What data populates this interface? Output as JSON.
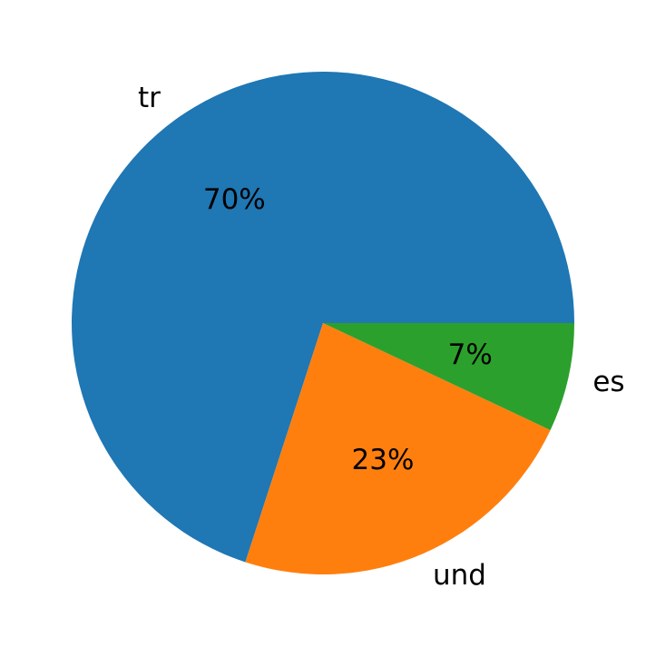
{
  "chart_data": {
    "type": "pie",
    "categories": [
      "tr",
      "und",
      "es"
    ],
    "values": [
      70,
      23,
      7
    ],
    "value_labels": [
      "70%",
      "23%",
      "7%"
    ],
    "colors": [
      "#1f77b4",
      "#ff7f0e",
      "#2ca02c"
    ]
  }
}
